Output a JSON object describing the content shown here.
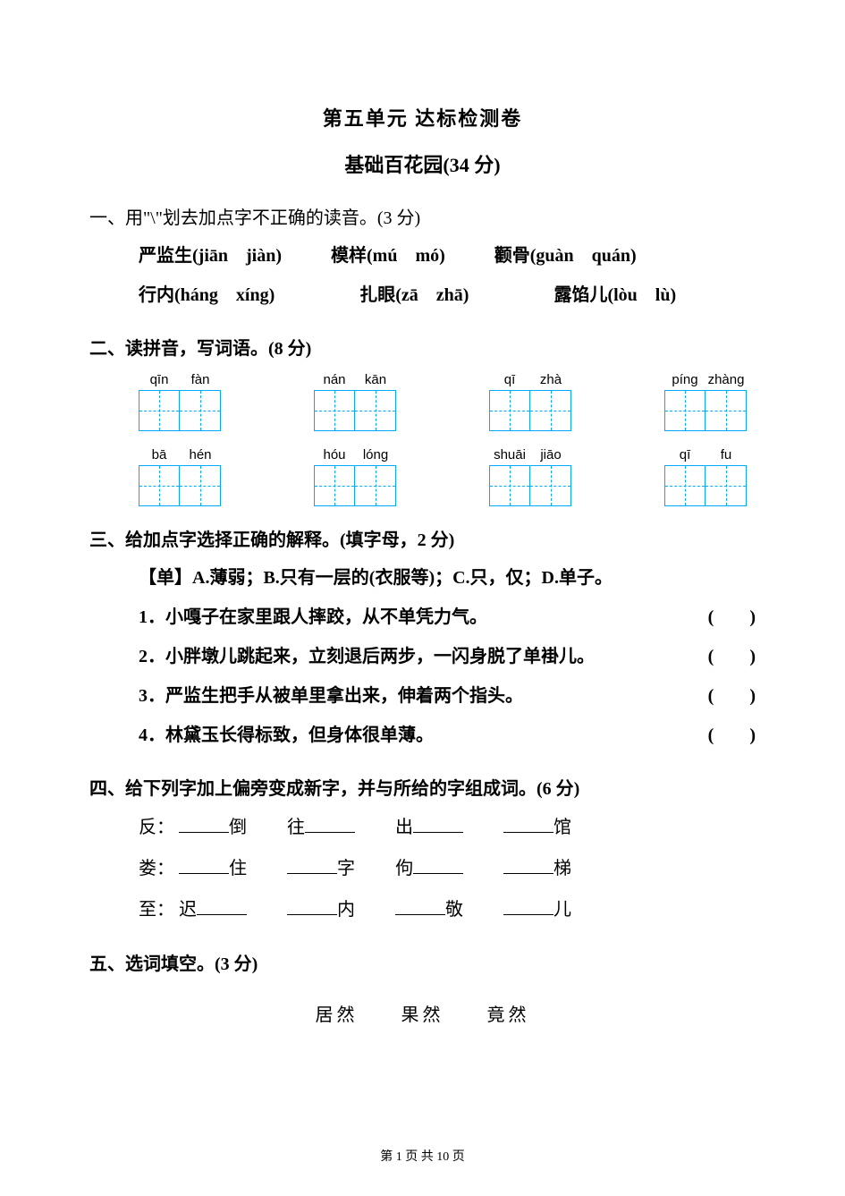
{
  "title": "第五单元 达标检测卷",
  "subtitle": "基础百花园(34 分)",
  "q1": {
    "heading": "一、用\"\\\"划去加点字不正确的读音。(3 分)",
    "row1": [
      {
        "word": "严监生",
        "pinyin": "(jiān　jiàn)"
      },
      {
        "word": "模样",
        "pinyin": "(mú　mó)"
      },
      {
        "word": "颧骨",
        "pinyin": "(guàn　quán)"
      }
    ],
    "row2": [
      {
        "word": "行内",
        "pinyin": "(háng　xíng)"
      },
      {
        "word": "扎眼",
        "pinyin": "(zā　zhā)"
      },
      {
        "word": "露馅儿",
        "pinyin": "(lòu　lù)"
      }
    ]
  },
  "q2": {
    "heading": "二、读拼音，写词语。(8 分)",
    "row1": [
      {
        "p1": "qīn",
        "p2": "fàn"
      },
      {
        "p1": "nán",
        "p2": "kān"
      },
      {
        "p1": "qī",
        "p2": "zhà"
      },
      {
        "p1": "píng",
        "p2": "zhàng"
      }
    ],
    "row2": [
      {
        "p1": "bā",
        "p2": "hén"
      },
      {
        "p1": "hóu",
        "p2": "lóng"
      },
      {
        "p1": "shuāi",
        "p2": "jiāo"
      },
      {
        "p1": "qī",
        "p2": "fu"
      }
    ]
  },
  "q3": {
    "heading": "三、给加点字选择正确的解释。(填字母，2 分)",
    "def": "【单】A.薄弱；B.只有一层的(衣服等)；C.只，仅；D.单子。",
    "items": [
      "1．小嘎子在家里跟人摔跤，从不单凭力气。",
      "2．小胖墩儿跳起来，立刻退后两步，一闪身脱了单褂儿。",
      "3．严监生把手从被单里拿出来，伸着两个指头。",
      "4．林黛玉长得标致，但身体很单薄。"
    ],
    "paren": "(　　)"
  },
  "q4": {
    "heading": "四、给下列字加上偏旁变成新字，并与所给的字组成词。(6 分)",
    "rows": [
      {
        "lead": "反：",
        "cells": [
          "倒",
          "往",
          "出",
          "馆"
        ],
        "pos": [
          "before",
          "after",
          "after",
          "before"
        ]
      },
      {
        "lead": "娄：",
        "cells": [
          "住",
          "字",
          "佝",
          "梯"
        ],
        "pos": [
          "before",
          "before",
          "after",
          "before"
        ]
      },
      {
        "lead": "至：",
        "cells": [
          "迟",
          "内",
          "敬",
          "儿"
        ],
        "pos": [
          "after",
          "before",
          "before",
          "before"
        ]
      }
    ]
  },
  "q5": {
    "heading": "五、选词填空。(3 分)",
    "words": "居然　　果然　　竟然"
  },
  "footer": {
    "text_before": "第 ",
    "cur": "1",
    "mid": " 页 共 ",
    "total": "10",
    "after": " 页"
  },
  "colors": {
    "grid": "#00aaff",
    "text": "#000000",
    "bg": "#ffffff"
  }
}
